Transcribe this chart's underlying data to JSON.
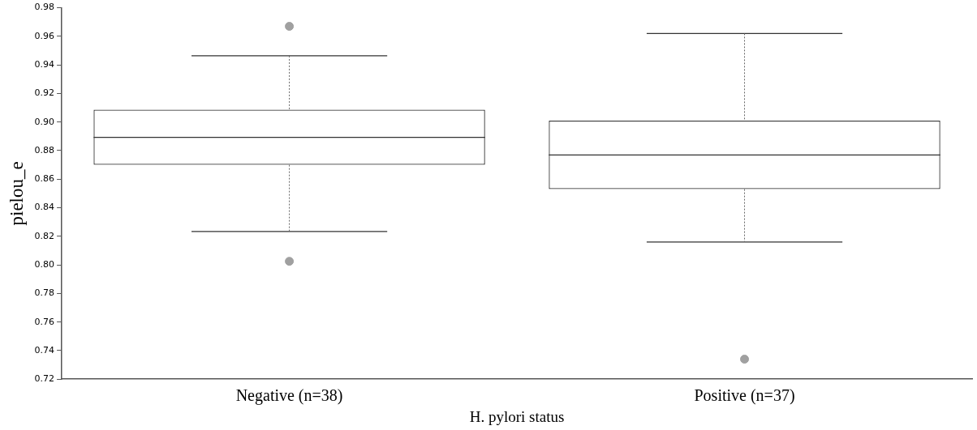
{
  "chart_data": {
    "type": "box",
    "categories": [
      "Negative (n=38)",
      "Positive (n=37)"
    ],
    "boxes": [
      {
        "low": 0.8234,
        "q1": 0.87,
        "median": 0.8893,
        "q3": 0.9086,
        "high": 0.9464,
        "outliers": [
          0.967,
          0.8025
        ]
      },
      {
        "low": 0.816,
        "q1": 0.853,
        "median": 0.877,
        "q3": 0.901,
        "high": 0.962,
        "outliers": [
          0.734
        ]
      }
    ],
    "xlabel": "H. pylori status",
    "ylabel": "pielou_e",
    "ylim": [
      0.72,
      0.98
    ],
    "yticks": [
      0.72,
      0.74,
      0.76,
      0.78,
      {
        "value": 0.8,
        "label": "0.80"
      },
      0.82,
      0.84,
      0.86,
      0.88,
      {
        "value": 0.9,
        "label": "0.90"
      },
      0.92,
      0.94,
      0.96,
      0.98
    ],
    "grid": false,
    "legend": false
  }
}
